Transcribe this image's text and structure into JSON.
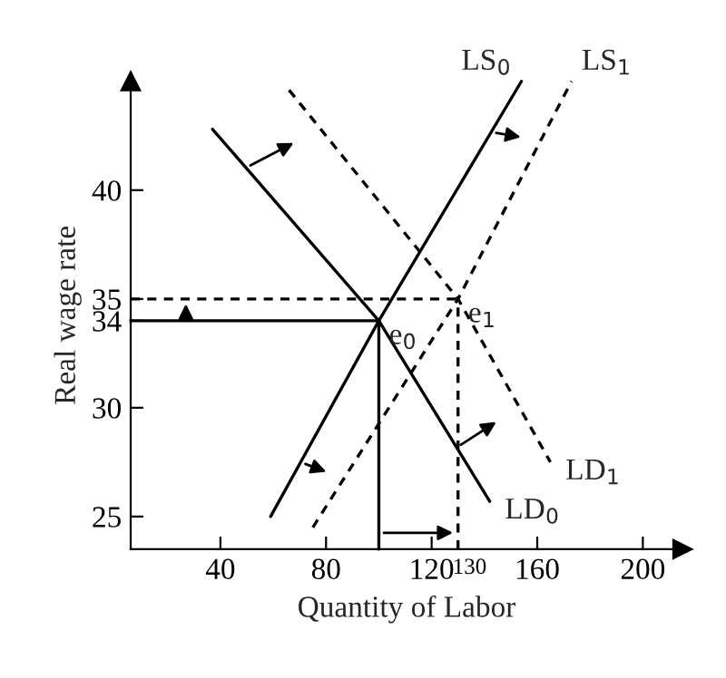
{
  "chart_data": {
    "type": "line",
    "xlabel": "Quantity of Labor",
    "ylabel": "Real wage rate",
    "xlim": [
      6,
      215
    ],
    "ylim": [
      23.5,
      45
    ],
    "xticks": [
      40,
      80,
      120,
      130,
      160,
      200
    ],
    "yticks": [
      25,
      30,
      34,
      35,
      40
    ],
    "grid": false,
    "legend": false,
    "marker": "none",
    "series": [
      {
        "name": "LS$_{0}$",
        "color": "#000000",
        "line_style": "solid",
        "x": [
          59,
          100,
          154
        ],
        "values": [
          25,
          34,
          45
        ]
      },
      {
        "name": "LS$_{1}$",
        "color": "#000000",
        "line_style": "dashed",
        "x": [
          75,
          130,
          173
        ],
        "values": [
          24.5,
          35,
          45
        ]
      },
      {
        "name": "LD$_{0}$",
        "color": "#000000",
        "line_style": "solid",
        "x": [
          37,
          100,
          142
        ],
        "values": [
          42.8,
          34,
          25.7
        ]
      },
      {
        "name": "LD$_{1}$",
        "color": "#000000",
        "line_style": "dashed",
        "x": [
          66,
          130,
          165
        ],
        "values": [
          44.6,
          35,
          27.5
        ]
      },
      {
        "color": "#000000",
        "line_style": "solid",
        "x": [
          6,
          100
        ],
        "values": [
          34,
          34
        ]
      },
      {
        "color": "#000000",
        "line_style": "solid",
        "x": [
          100,
          100
        ],
        "values": [
          34,
          23.5
        ]
      },
      {
        "color": "#000000",
        "line_style": "dashed",
        "x": [
          6,
          130
        ],
        "values": [
          35,
          35
        ]
      },
      {
        "color": "#000000",
        "line_style": "dashed",
        "x": [
          130,
          130
        ],
        "values": [
          23.5,
          35
        ]
      }
    ],
    "annotations": [
      {
        "text": "e$_{0}$",
        "x": 100,
        "y": 34
      },
      {
        "text": "e$_{1}$",
        "x": 130,
        "y": 35
      }
    ]
  }
}
